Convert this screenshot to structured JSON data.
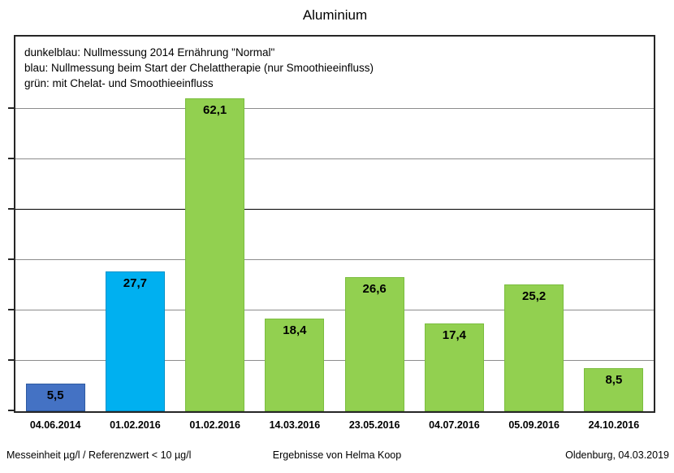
{
  "title": "Aluminium",
  "chart_data": {
    "type": "bar",
    "title": "Aluminium",
    "categories": [
      "04.06.2014",
      "01.02.2016",
      "01.02.2016",
      "14.03.2016",
      "23.05.2016",
      "04.07.2016",
      "05.09.2016",
      "24.10.2016"
    ],
    "values": [
      5.5,
      27.7,
      62.1,
      18.4,
      26.6,
      17.4,
      25.2,
      8.5
    ],
    "value_labels": [
      "5,5",
      "27,7",
      "62,1",
      "18,4",
      "26,6",
      "17,4",
      "25,2",
      "8,5"
    ],
    "bar_colors": [
      "#4472C4",
      "#00B0F0",
      "#92D050",
      "#92D050",
      "#92D050",
      "#92D050",
      "#92D050",
      "#92D050"
    ],
    "bar_border_colors": [
      "#2E5AA0",
      "#0091C9",
      "#7ABD3E",
      "#7ABD3E",
      "#7ABD3E",
      "#7ABD3E",
      "#7ABD3E",
      "#7ABD3E"
    ],
    "xlabel": "",
    "ylabel": "",
    "ylim": [
      0,
      75
    ],
    "gridline_interval": 10,
    "dark_gridline_value": 40,
    "grid": true,
    "legend_position": "top-left-inside",
    "legend_lines": [
      "dunkelblau: Nullmessung 2014 Ernährung \"Normal\"",
      "blau: Nullmessung beim Start der Chelattherapie (nur Smoothieeinfluss)",
      "grün: mit Chelat- und Smoothieeinfluss"
    ],
    "series_colors": {
      "dunkelblau": "#4472C4",
      "blau": "#00B0F0",
      "gruen": "#92D050"
    }
  },
  "footer": {
    "left": "Messeinheit µg/l / Referenzwert < 10 µg/l",
    "center": "Ergebnisse von Helma Koop",
    "right": "Oldenburg, 04.03.2019"
  }
}
